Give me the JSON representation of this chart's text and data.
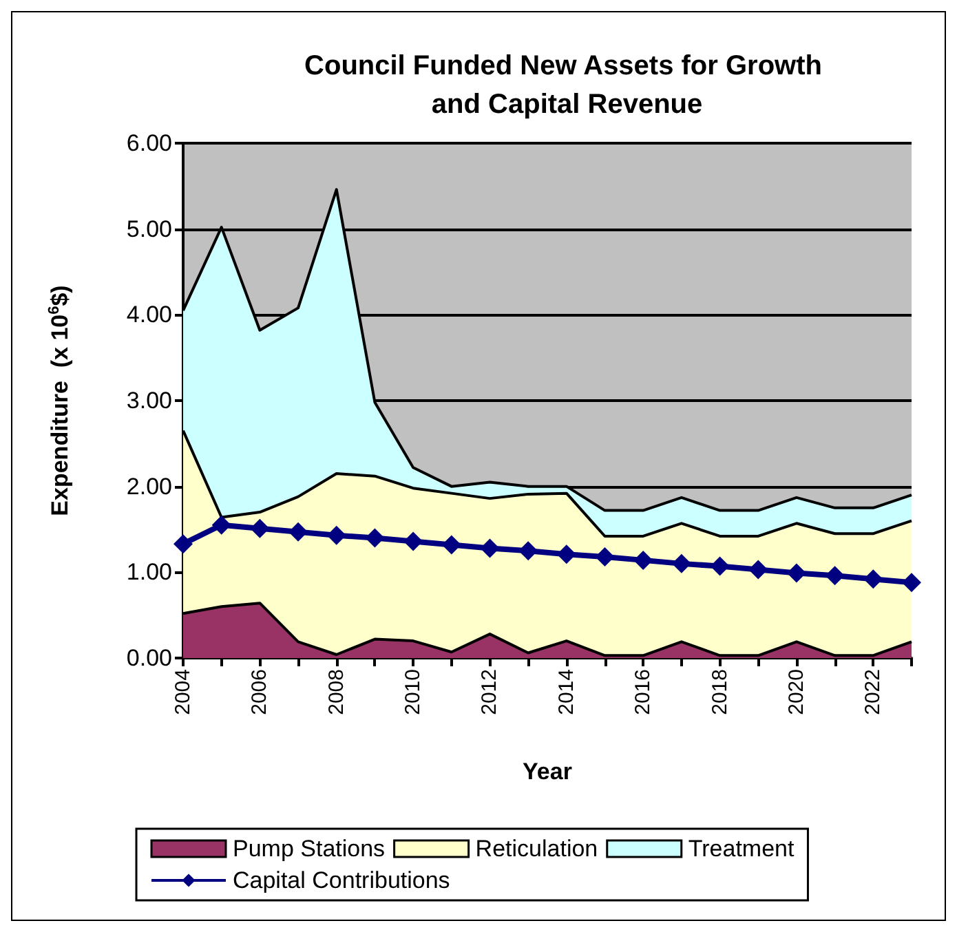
{
  "chart_data": {
    "type": "area",
    "stacked": true,
    "title": "Council Funded New Assets for Growth and Capital Revenue",
    "xlabel": "Year",
    "ylabel": "Expenditure  (x 10$^{6}$$)",
    "categories": [
      "2004",
      null,
      "2006",
      null,
      "2008",
      null,
      "2010",
      null,
      "2012",
      null,
      "2014",
      null,
      "2016",
      null,
      "2018",
      null,
      "2020",
      null,
      "2022",
      null
    ],
    "series": [
      {
        "name": "Pump Stations",
        "color": "#993366",
        "values": [
          0.52,
          0.6,
          0.64,
          0.19,
          0.04,
          0.22,
          0.2,
          0.07,
          0.28,
          0.06,
          0.2,
          0.03,
          0.03,
          0.19,
          0.03,
          0.03,
          0.19,
          0.03,
          0.03,
          0.19
        ]
      },
      {
        "name": "Reticulation",
        "color": "#ffffcc",
        "values": [
          2.13,
          1.04,
          1.06,
          1.69,
          2.11,
          1.9,
          1.78,
          1.85,
          1.58,
          1.85,
          1.72,
          1.39,
          1.39,
          1.38,
          1.39,
          1.39,
          1.38,
          1.42,
          1.42,
          1.41
        ]
      },
      {
        "name": "Treatment",
        "color": "#ccffff",
        "values": [
          1.4,
          3.38,
          2.12,
          2.2,
          3.31,
          0.86,
          0.24,
          0.08,
          0.19,
          0.09,
          0.08,
          0.3,
          0.3,
          0.3,
          0.3,
          0.3,
          0.3,
          0.3,
          0.3,
          0.3
        ]
      },
      {
        "name": "Capital Contributions",
        "type": "line",
        "marker": "diamond",
        "color": "#000080",
        "values": [
          1.33,
          1.55,
          1.51,
          1.47,
          1.43,
          1.4,
          1.36,
          1.32,
          1.28,
          1.25,
          1.21,
          1.18,
          1.14,
          1.1,
          1.07,
          1.03,
          0.99,
          0.96,
          0.92,
          0.88
        ]
      }
    ],
    "line_style": "solid",
    "ylim": [
      0,
      6
    ],
    "yticks": [
      {
        "value": 0,
        "label": "0.00"
      },
      {
        "value": 1,
        "label": "1.00"
      },
      {
        "value": 2,
        "label": "2.00"
      },
      {
        "value": 3,
        "label": "3.00"
      },
      {
        "value": 4,
        "label": "4.00"
      },
      {
        "value": 5,
        "label": "5.00"
      },
      {
        "value": 6,
        "label": "6.00"
      }
    ],
    "grid": "y",
    "legend": "bottom"
  }
}
